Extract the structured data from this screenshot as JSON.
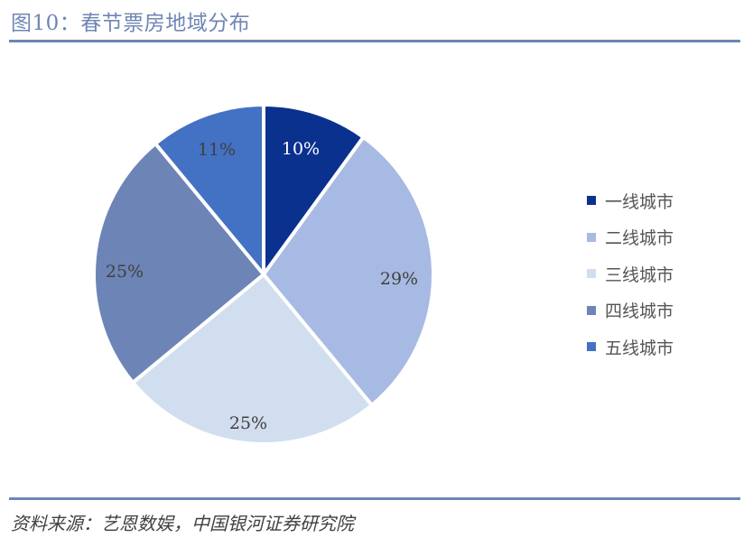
{
  "header": {
    "title": "图10：春节票房地域分布"
  },
  "footer": {
    "source": "资料来源：艺恩数娱，中国银河证券研究院"
  },
  "legend": {
    "items": [
      {
        "label": "一线城市",
        "color": "#0b318f"
      },
      {
        "label": "二线城市",
        "color": "#a7bae3"
      },
      {
        "label": "三线城市",
        "color": "#d1deef"
      },
      {
        "label": "四线城市",
        "color": "#6d84b6"
      },
      {
        "label": "五线城市",
        "color": "#4371c4"
      }
    ]
  },
  "labels": {
    "tier1": "10%",
    "tier2": "29%",
    "tier3": "25%",
    "tier4": "25%",
    "tier5": "11%"
  },
  "chart_data": {
    "type": "pie",
    "title": "图10：春节票房地域分布",
    "categories": [
      "一线城市",
      "二线城市",
      "三线城市",
      "四线城市",
      "五线城市"
    ],
    "values": [
      10,
      29,
      25,
      25,
      11
    ],
    "unit": "%",
    "colors": [
      "#0b318f",
      "#a7bae3",
      "#d1deef",
      "#6d84b6",
      "#4371c4"
    ],
    "start_angle": "12 o'clock, clockwise",
    "legend_position": "right",
    "data_labels": true
  }
}
